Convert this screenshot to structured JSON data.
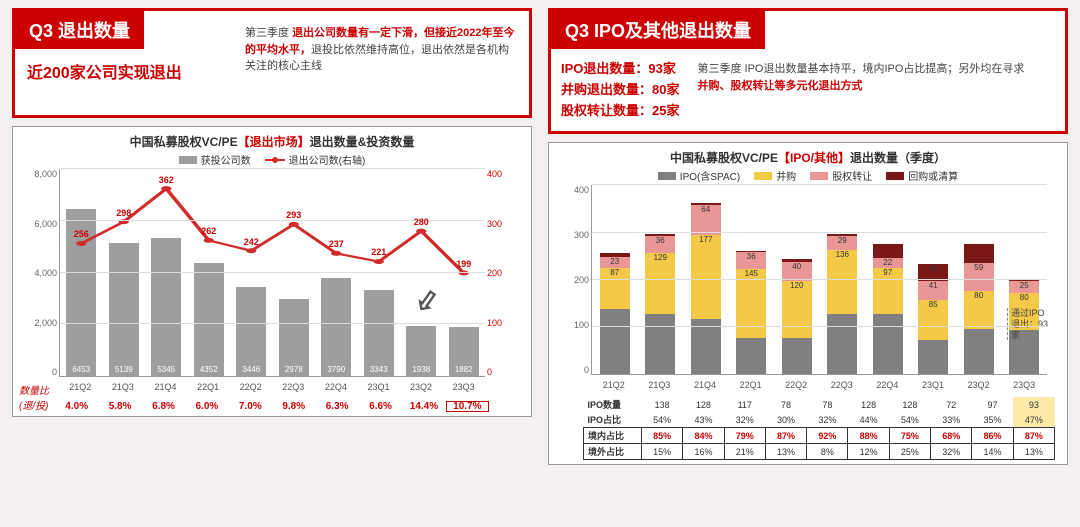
{
  "left": {
    "tag": "Q3 退出数量",
    "subtitle": "近200家公司实现退出",
    "desc_full": "第三季度 退出公司数量有一定下滑，但接近2022年至今的平均水平，退投比依然维持高位，退出依然是各机构关注的核心主线",
    "desc_parts": [
      "第三季度 ",
      "退出公司数量有一定下滑，但接近2022年至今的平均水平，",
      "退投比依然维持高位，退出依然是各机构关注的核心主线"
    ],
    "chart": {
      "title_pre": "中国私募股权VC/PE",
      "title_bracket": "【退出市场】",
      "title_post": "退出数量&投资数量",
      "legend_bar": "获投公司数",
      "legend_line": "退出公司数(右轴)",
      "categories": [
        "21Q2",
        "21Q3",
        "21Q4",
        "22Q1",
        "22Q2",
        "22Q3",
        "22Q4",
        "23Q1",
        "23Q2",
        "23Q3"
      ],
      "bars": [
        6453,
        5139,
        5345,
        4352,
        3446,
        2978,
        3790,
        3343,
        1938,
        1882
      ],
      "line": [
        256,
        298,
        362,
        262,
        242,
        293,
        237,
        221,
        280,
        199
      ],
      "bar_color": "#9e9e9e",
      "line_color": "#d12b2b",
      "y_left": {
        "min": 0,
        "max": 8000,
        "step": 2000
      },
      "y_right": {
        "min": 0,
        "max": 400,
        "step": 100
      },
      "ratio_label1": "数量比",
      "ratio_label2": "(退/投)",
      "ratios": [
        "4.0%",
        "5.8%",
        "6.8%",
        "6.0%",
        "7.0%",
        "9.8%",
        "6.3%",
        "6.6%",
        "14.4%",
        "10.7%"
      ]
    }
  },
  "right": {
    "tag": "Q3 IPO及其他退出数量",
    "stats": [
      "IPO退出数量：93家",
      "并购退出数量：80家",
      "股权转让数量：25家"
    ],
    "desc_parts": [
      "第三季度 IPO退出数量基本持平，境内IPO占比提高；另外均在寻求",
      "并购、股权转让等多元化退出方式"
    ],
    "chart": {
      "title_pre": "中国私募股权VC/PE",
      "title_bracket": "【IPO/其他】",
      "title_post": "退出数量（季度）",
      "legend": [
        {
          "label": "IPO(含SPAC)",
          "color": "#808080"
        },
        {
          "label": "并购",
          "color": "#f4c94a"
        },
        {
          "label": "股权转让",
          "color": "#e89696"
        },
        {
          "label": "回购或清算",
          "color": "#7a1818"
        }
      ],
      "categories": [
        "21Q2",
        "21Q3",
        "21Q4",
        "22Q1",
        "22Q2",
        "22Q3",
        "22Q4",
        "23Q1",
        "23Q2",
        "23Q3"
      ],
      "y": {
        "min": 0,
        "max": 400,
        "step": 100
      },
      "series": {
        "ipo": [
          138,
          128,
          117,
          78,
          78,
          128,
          128,
          72,
          97,
          93
        ],
        "ma": [
          87,
          129,
          177,
          145,
          120,
          136,
          97,
          85,
          80,
          80
        ],
        "equity": [
          23,
          36,
          64,
          36,
          40,
          29,
          22,
          41,
          59,
          25
        ],
        "buyback": [
          8,
          5,
          4,
          3,
          6,
          5,
          28,
          35,
          40,
          2
        ]
      },
      "seg_labels": {
        "ma": [
          "87",
          "129",
          "177",
          "145",
          "120",
          "136",
          "97",
          "85",
          "80",
          "80"
        ],
        "equity": [
          "23",
          "36",
          "64",
          "36",
          "40",
          "29",
          "22",
          "41",
          "59",
          "25"
        ],
        "buyback": [
          "",
          "",
          "",
          "",
          "",
          "",
          "",
          "35",
          "",
          ""
        ]
      },
      "note": "通过IPO退出：93家",
      "table": {
        "row1_label": "IPO数量",
        "row1": [
          "138",
          "128",
          "117",
          "78",
          "78",
          "128",
          "128",
          "72",
          "97",
          "93"
        ],
        "row2_label": "IPO占比",
        "row2": [
          "54%",
          "43%",
          "32%",
          "30%",
          "32%",
          "44%",
          "54%",
          "33%",
          "35%",
          "47%"
        ],
        "row3_label": "境内占比",
        "row3": [
          "85%",
          "84%",
          "79%",
          "87%",
          "92%",
          "88%",
          "75%",
          "68%",
          "86%",
          "87%"
        ],
        "row4_label": "境外占比",
        "row4": [
          "15%",
          "16%",
          "21%",
          "13%",
          "8%",
          "12%",
          "25%",
          "32%",
          "14%",
          "13%"
        ]
      }
    }
  }
}
